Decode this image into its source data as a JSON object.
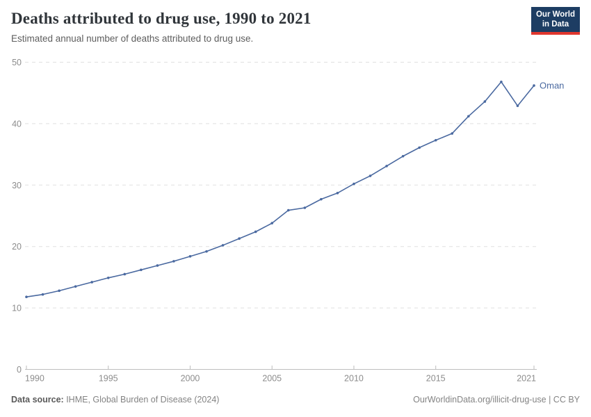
{
  "header": {
    "title": "Deaths attributed to drug use, 1990 to 2021",
    "subtitle": "Estimated annual number of deaths attributed to drug use.",
    "logo": {
      "line1": "Our World",
      "line2": "in Data"
    }
  },
  "chart_data": {
    "type": "line",
    "title": "Deaths attributed to drug use, 1990 to 2021",
    "xlabel": "",
    "ylabel": "",
    "x": [
      1990,
      1991,
      1992,
      1993,
      1994,
      1995,
      1996,
      1997,
      1998,
      1999,
      2000,
      2001,
      2002,
      2003,
      2004,
      2005,
      2006,
      2007,
      2008,
      2009,
      2010,
      2011,
      2012,
      2013,
      2014,
      2015,
      2016,
      2017,
      2018,
      2019,
      2020,
      2021
    ],
    "series": [
      {
        "name": "Oman",
        "values": [
          11.8,
          12.2,
          12.8,
          13.5,
          14.2,
          14.9,
          15.5,
          16.2,
          16.9,
          17.6,
          18.4,
          19.2,
          20.2,
          21.3,
          22.4,
          23.8,
          25.9,
          26.3,
          27.7,
          28.7,
          30.2,
          31.5,
          33.1,
          34.7,
          36.1,
          37.3,
          38.4,
          41.2,
          43.6,
          46.8,
          42.9,
          46.2
        ]
      }
    ],
    "xlim": [
      1990,
      2021
    ],
    "ylim": [
      0,
      50
    ],
    "x_ticks": [
      1990,
      1995,
      2000,
      2005,
      2010,
      2015,
      2021
    ],
    "y_ticks": [
      0,
      10,
      20,
      30,
      40,
      50
    ],
    "grid": "horizontal-dashed",
    "legend_position": "end-of-line-label"
  },
  "footer": {
    "source_label": "Data source:",
    "source_text": " IHME, Global Burden of Disease (2024)",
    "credit": "OurWorldinData.org/illicit-drug-use | CC BY"
  },
  "colors": {
    "line": "#4a69a0",
    "grid": "#e0e0e0",
    "axis": "#bdbdbd",
    "tick_label": "#8c8c8c",
    "logo_bg": "#1d3d63",
    "logo_accent": "#e0372e"
  }
}
